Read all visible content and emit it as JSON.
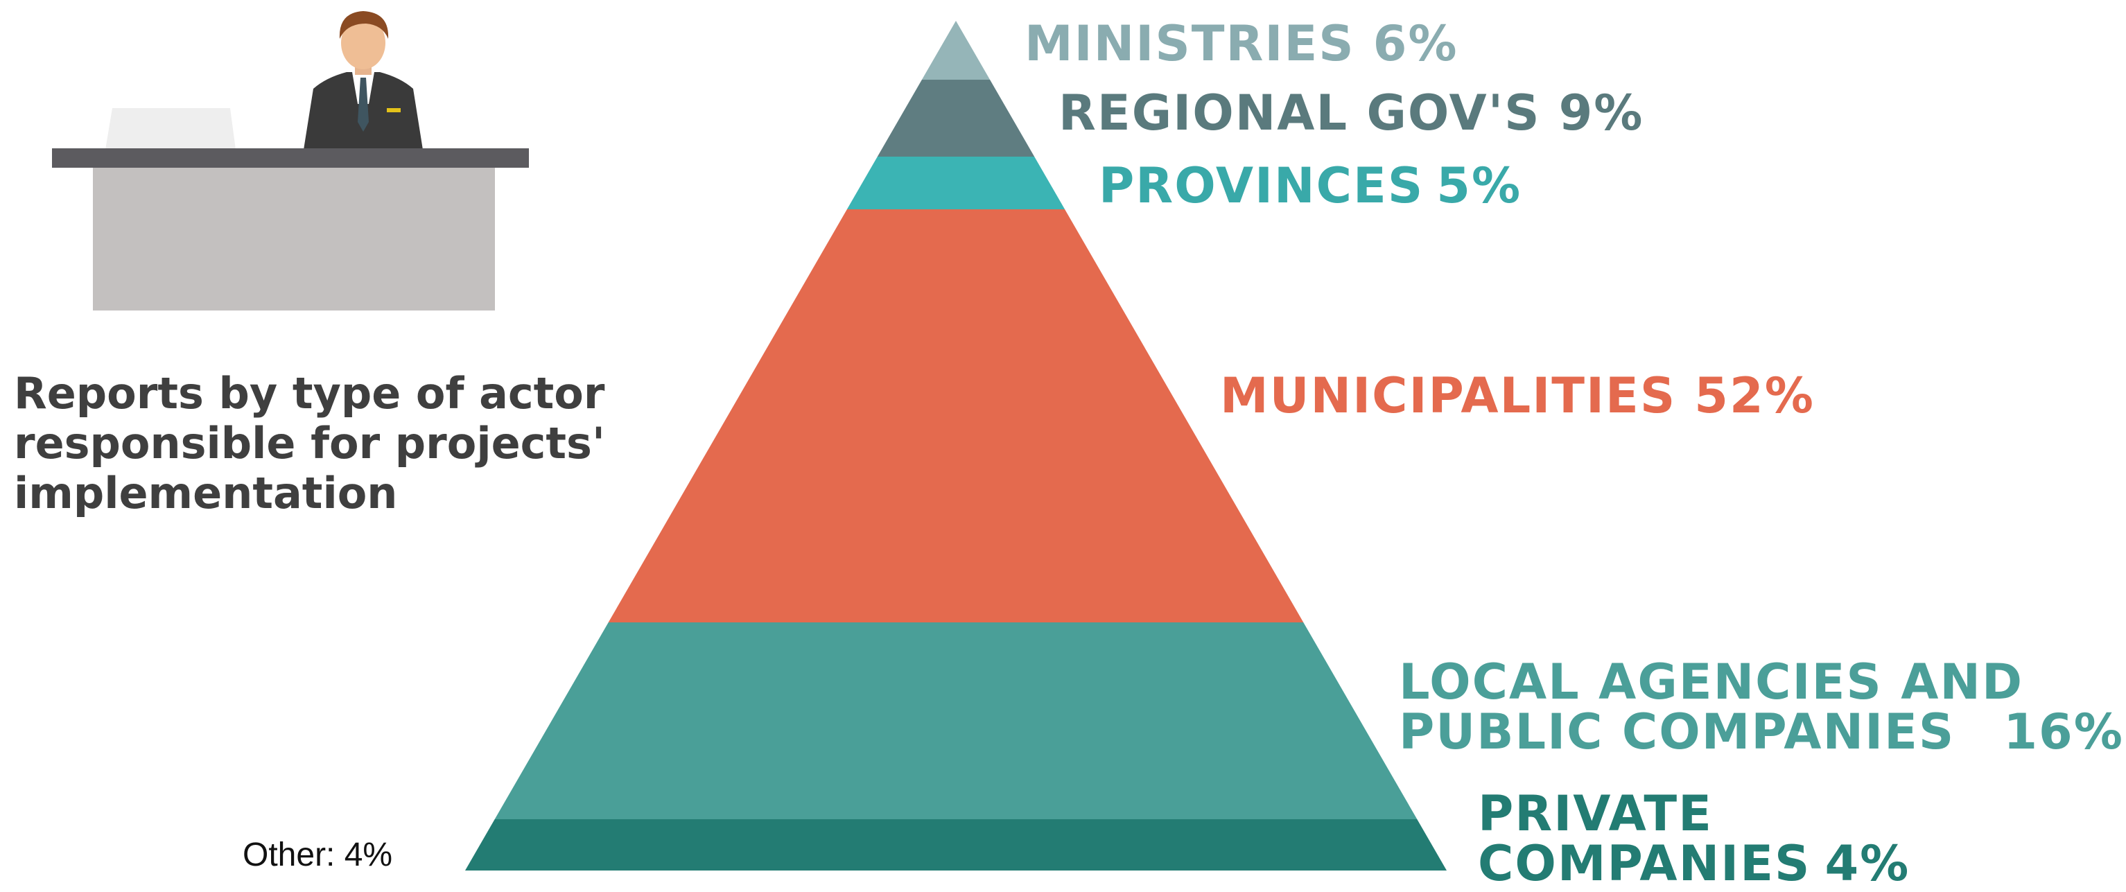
{
  "subtitle_lines": [
    "Reports by type of actor",
    "responsible for projects'",
    "implementation"
  ],
  "other_label": "Other: 4%",
  "colors": {
    "ministries": "#95b5b8",
    "regional": "#5f7d81",
    "provinces": "#3bb4b4",
    "municipalities": "#e46a4e",
    "local": "#4a9f98",
    "private": "#237c73"
  },
  "chart_data": {
    "type": "pyramid",
    "title": "",
    "categories": [
      "MINISTRIES",
      "REGIONAL GOV'S",
      "PROVINCES",
      "MUNICIPALITIES",
      "LOCAL AGENCIES AND PUBLIC COMPANIES",
      "PRIVATE COMPANIES",
      "Other"
    ],
    "values": [
      6,
      9,
      5,
      52,
      16,
      4,
      4
    ],
    "unit": "%",
    "labels": {
      "ministries": {
        "name": "MINISTRIES",
        "value": "6%"
      },
      "regional": {
        "name": "REGIONAL GOV'S",
        "value": "9%"
      },
      "provinces": {
        "name": "PROVINCES",
        "value": "5%"
      },
      "municipalities": {
        "name": "MUNICIPALITIES",
        "value": "52%"
      },
      "local": {
        "name_line1": "LOCAL AGENCIES AND",
        "name_line2": "PUBLIC COMPANIES",
        "value": "16%"
      },
      "private": {
        "name_line1": "PRIVATE",
        "name_line2": "COMPANIES",
        "value": "4%"
      }
    }
  }
}
